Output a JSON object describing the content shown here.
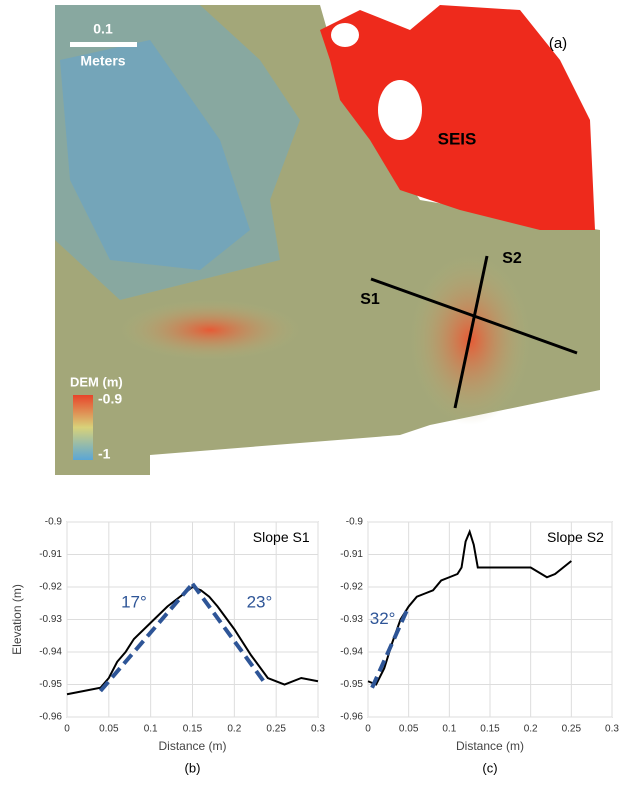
{
  "map": {
    "panel_label": "(a)",
    "scale_bar": {
      "value": "0.1",
      "unit": "Meters"
    },
    "labels": [
      "SEIS",
      "S1",
      "S2"
    ],
    "colorbar": {
      "title": "DEM (m)",
      "ticks": [
        -0.9,
        -1
      ]
    }
  },
  "chart_data": [
    {
      "type": "line",
      "panel_label": "(b)",
      "x_label": "Distance (m)",
      "y_label": "Elevation (m)",
      "grid": true,
      "xlim": [
        0,
        0.3
      ],
      "xticks": [
        0,
        0.05,
        0.1,
        0.15,
        0.2,
        0.25,
        0.3
      ],
      "ylim": [
        -0.96,
        -0.9
      ],
      "yticks": [
        -0.96,
        -0.95,
        -0.94,
        -0.93,
        -0.92,
        -0.91,
        -0.9
      ],
      "annotations": [
        "Slope S1",
        "17°",
        "23°"
      ],
      "x": [
        0,
        0.02,
        0.04,
        0.05,
        0.06,
        0.07,
        0.08,
        0.1,
        0.12,
        0.14,
        0.15,
        0.16,
        0.17,
        0.18,
        0.2,
        0.22,
        0.24,
        0.26,
        0.28,
        0.3
      ],
      "series": [
        {
          "color": "#000000",
          "values": [
            -0.953,
            -0.952,
            -0.951,
            -0.948,
            -0.943,
            -0.94,
            -0.936,
            -0.931,
            -0.926,
            -0.922,
            -0.92,
            -0.921,
            -0.923,
            -0.926,
            -0.933,
            -0.941,
            -0.948,
            -0.95,
            -0.948,
            -0.949
          ]
        },
        {
          "color": "#2e5597",
          "dashed": true,
          "x": [
            0.04,
            0.15
          ],
          "values": [
            -0.952,
            -0.919
          ]
        },
        {
          "color": "#2e5597",
          "dashed": true,
          "x": [
            0.15,
            0.235
          ],
          "values": [
            -0.919,
            -0.949
          ]
        }
      ]
    },
    {
      "type": "line",
      "panel_label": "(c)",
      "x_label": "Distance (m)",
      "grid": true,
      "xlim": [
        0,
        0.3
      ],
      "xticks": [
        0,
        0.05,
        0.1,
        0.15,
        0.2,
        0.25,
        0.3
      ],
      "ylim": [
        -0.96,
        -0.9
      ],
      "yticks": [
        -0.96,
        -0.95,
        -0.94,
        -0.93,
        -0.92,
        -0.91,
        -0.9
      ],
      "annotations": [
        "Slope S2",
        "32°"
      ],
      "x": [
        0,
        0.01,
        0.02,
        0.03,
        0.04,
        0.05,
        0.06,
        0.07,
        0.08,
        0.09,
        0.1,
        0.11,
        0.115,
        0.12,
        0.125,
        0.13,
        0.135,
        0.15,
        0.2,
        0.22,
        0.23,
        0.25
      ],
      "series": [
        {
          "color": "#000000",
          "values": [
            -0.949,
            -0.95,
            -0.945,
            -0.937,
            -0.93,
            -0.926,
            -0.923,
            -0.922,
            -0.921,
            -0.918,
            -0.917,
            -0.916,
            -0.914,
            -0.906,
            -0.903,
            -0.907,
            -0.914,
            -0.914,
            -0.914,
            -0.917,
            -0.916,
            -0.912
          ]
        },
        {
          "color": "#2e5597",
          "dashed": true,
          "x": [
            0.005,
            0.05
          ],
          "values": [
            -0.951,
            -0.926
          ]
        }
      ]
    }
  ]
}
